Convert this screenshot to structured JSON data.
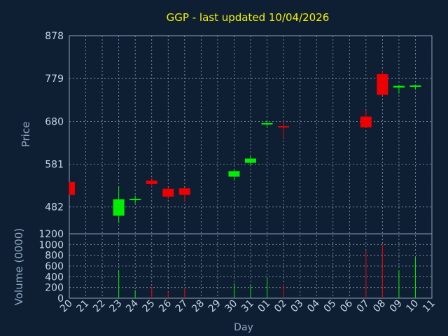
{
  "chart_data": {
    "type": "candlestick",
    "title": "GGP - last updated 10/04/2026",
    "xlabel": "Day",
    "colors": {
      "background": "#0f1f33",
      "title": "#f2f200",
      "axis_text": "#8fa8c0",
      "tick_text": "#c4d4e4",
      "grid": "#8aa0b8",
      "up": "#00ee00",
      "down": "#ee0000"
    },
    "x_ticks": [
      "20",
      "21",
      "22",
      "23",
      "24",
      "25",
      "26",
      "27",
      "28",
      "29",
      "30",
      "31",
      "01",
      "02",
      "03",
      "04",
      "05",
      "06",
      "07",
      "08",
      "09",
      "10",
      "11"
    ],
    "price_panel": {
      "ylabel": "Price",
      "ylim": [
        420,
        878
      ],
      "yticks": [
        482,
        581,
        680,
        779,
        878
      ]
    },
    "volume_panel": {
      "ylabel": "Volume (0000)",
      "ylim": [
        0,
        1200
      ],
      "yticks": [
        0,
        200,
        400,
        600,
        800,
        1000,
        1200
      ]
    },
    "candles": [
      {
        "day": "20",
        "open": 540,
        "high": 540,
        "low": 510,
        "close": 510,
        "volume": 0
      },
      {
        "day": "23",
        "open": 462,
        "high": 530,
        "low": 445,
        "close": 500,
        "volume": 520
      },
      {
        "day": "24",
        "open": 498,
        "high": 508,
        "low": 490,
        "close": 501,
        "volume": 150
      },
      {
        "day": "25",
        "open": 543,
        "high": 550,
        "low": 527,
        "close": 535,
        "volume": 210
      },
      {
        "day": "26",
        "open": 524,
        "high": 527,
        "low": 500,
        "close": 506,
        "volume": 120
      },
      {
        "day": "27",
        "open": 525,
        "high": 527,
        "low": 494,
        "close": 510,
        "volume": 190
      },
      {
        "day": "30",
        "open": 552,
        "high": 570,
        "low": 543,
        "close": 565,
        "volume": 280
      },
      {
        "day": "31",
        "open": 584,
        "high": 600,
        "low": 578,
        "close": 594,
        "volume": 250
      },
      {
        "day": "01",
        "open": 673,
        "high": 682,
        "low": 665,
        "close": 676,
        "volume": 380
      },
      {
        "day": "02",
        "open": 669,
        "high": 682,
        "low": 642,
        "close": 667,
        "volume": 260
      },
      {
        "day": "07",
        "open": 691,
        "high": 705,
        "low": 665,
        "close": 666,
        "volume": 880
      },
      {
        "day": "08",
        "open": 789,
        "high": 797,
        "low": 740,
        "close": 741,
        "volume": 1000
      },
      {
        "day": "09",
        "open": 758,
        "high": 764,
        "low": 744,
        "close": 762,
        "volume": 520
      },
      {
        "day": "10",
        "open": 760,
        "high": 765,
        "low": 753,
        "close": 763,
        "volume": 760
      }
    ]
  }
}
